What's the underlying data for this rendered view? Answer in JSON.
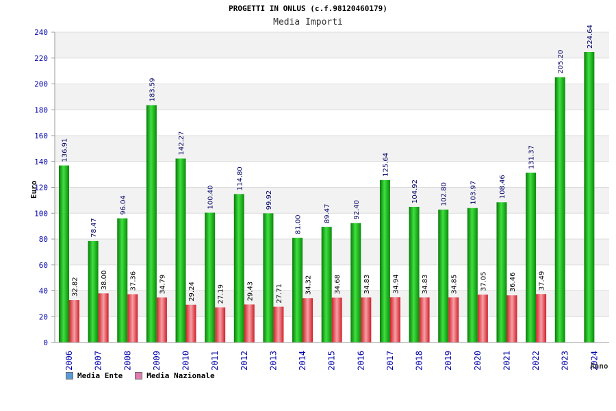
{
  "header": {
    "title": "PROGETTI IN ONLUS (c.f.98120460179)",
    "subtitle": "Media Importi"
  },
  "legend": [
    {
      "label": "Media Ente",
      "color": "#5b9bd5"
    },
    {
      "label": "Media Nazionale",
      "color": "#e07bb0"
    }
  ],
  "chart_data": {
    "type": "bar",
    "title": "PROGETTI IN ONLUS (c.f.98120460179)",
    "subtitle": "Media Importi",
    "xlabel": "Anno",
    "ylabel": "Euro",
    "ylim": [
      0,
      240
    ],
    "yticks": [
      0,
      20,
      40,
      60,
      80,
      100,
      120,
      140,
      160,
      180,
      200,
      220,
      240
    ],
    "categories": [
      "2006",
      "2007",
      "2008",
      "2009",
      "2010",
      "2011",
      "2012",
      "2013",
      "2014",
      "2015",
      "2016",
      "2017",
      "2018",
      "2019",
      "2020",
      "2021",
      "2022",
      "2023",
      "2024"
    ],
    "series": [
      {
        "name": "Media Ente",
        "color": "#1db31d",
        "values": [
          136.91,
          78.47,
          96.04,
          183.59,
          142.27,
          100.4,
          114.8,
          99.92,
          81.0,
          89.47,
          92.4,
          125.64,
          104.92,
          102.8,
          103.97,
          108.46,
          131.37,
          205.2,
          224.64
        ],
        "labels": [
          "136.91",
          "78.47",
          "96.04",
          "183.59",
          "142.27",
          "100.40",
          "114.80",
          "99.92",
          "81.00",
          "89.47",
          "92.40",
          "125.64",
          "104.92",
          "102.80",
          "103.97",
          "108.46",
          "131.37",
          "205.20",
          "224.64"
        ]
      },
      {
        "name": "Media Nazionale",
        "color": "#e8404a",
        "values": [
          32.82,
          38.0,
          37.36,
          34.79,
          29.24,
          27.19,
          29.43,
          27.71,
          34.32,
          34.68,
          34.83,
          34.94,
          34.83,
          34.85,
          37.05,
          36.46,
          37.49,
          null,
          null
        ],
        "labels": [
          "32.82",
          "38.00",
          "37.36",
          "34.79",
          "29.24",
          "27.19",
          "29.43",
          "27.71",
          "34.32",
          "34.68",
          "34.83",
          "34.94",
          "34.83",
          "34.85",
          "37.05",
          "36.46",
          "37.49",
          "",
          ""
        ]
      }
    ],
    "grid": true,
    "legend_position": "bottom-left"
  }
}
